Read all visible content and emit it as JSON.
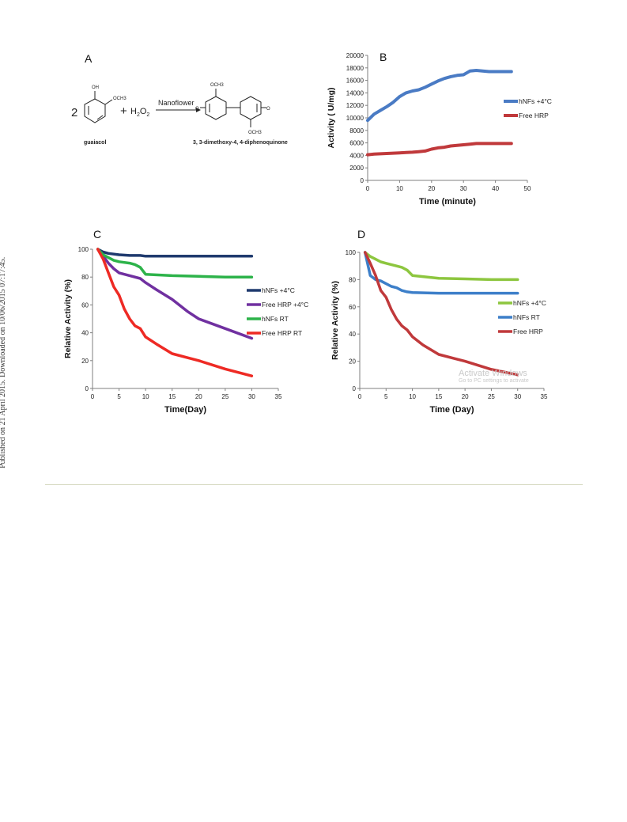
{
  "side_note": "Published on 21 April 2015. Downloaded on 10/06/2015 07:17:45.",
  "panel_a": {
    "letter": "A",
    "coefficient": "2",
    "reagent": "H2O2",
    "arrow_label": "Nanoflower",
    "reactant_name": "guaiacol",
    "product_name": "3, 3-dimethoxy-4, 4-diphenoquinone",
    "oh": "OH",
    "och3": "OCH3"
  },
  "watermark": {
    "line1": "Activate Windows",
    "line2": "Go to PC settings to activate"
  },
  "chart_data": [
    {
      "panel": "B",
      "type": "line",
      "xlabel": "Time (minute)",
      "ylabel": "Activity ( U/mg)",
      "xlim": [
        0,
        50
      ],
      "ylim": [
        0,
        20000
      ],
      "xticks": [
        0,
        10,
        20,
        30,
        40,
        50
      ],
      "yticks": [
        0,
        2000,
        4000,
        6000,
        8000,
        10000,
        12000,
        14000,
        16000,
        18000,
        20000
      ],
      "legend_position": "right",
      "series": [
        {
          "name": "hNFs +4°C",
          "color": "#4a7bc4",
          "x": [
            0,
            2,
            4,
            6,
            8,
            10,
            12,
            14,
            16,
            18,
            20,
            22,
            24,
            26,
            28,
            30,
            32,
            34,
            36,
            38,
            40,
            45
          ],
          "y": [
            9600,
            10600,
            11200,
            11800,
            12500,
            13400,
            14000,
            14300,
            14500,
            14900,
            15400,
            15900,
            16300,
            16600,
            16800,
            16900,
            17500,
            17600,
            17500,
            17400,
            17400,
            17400
          ]
        },
        {
          "name": "Free HRP",
          "color": "#c0393b",
          "x": [
            0,
            2,
            4,
            6,
            8,
            10,
            12,
            14,
            16,
            18,
            20,
            22,
            24,
            26,
            28,
            30,
            32,
            34,
            36,
            38,
            40,
            45
          ],
          "y": [
            4100,
            4200,
            4250,
            4300,
            4350,
            4400,
            4450,
            4500,
            4600,
            4700,
            5000,
            5200,
            5300,
            5500,
            5600,
            5700,
            5800,
            5900,
            5900,
            5900,
            5900,
            5900
          ]
        }
      ]
    },
    {
      "panel": "C",
      "type": "line",
      "xlabel": "Time(Day)",
      "ylabel": "Relative Activity (%)",
      "xlim": [
        0,
        35
      ],
      "ylim": [
        0,
        100
      ],
      "xticks": [
        0,
        5,
        10,
        15,
        20,
        25,
        30,
        35
      ],
      "yticks": [
        0,
        20,
        40,
        60,
        80,
        100
      ],
      "legend_position": "right",
      "series": [
        {
          "name": "hNFs +4°C",
          "color": "#1f3a6e",
          "x": [
            1,
            2,
            3,
            5,
            7,
            9,
            10,
            15,
            20,
            25,
            30
          ],
          "y": [
            100,
            98,
            97,
            96,
            95.5,
            95.5,
            95,
            95,
            95,
            95,
            95
          ]
        },
        {
          "name": "Free HRP +4°C",
          "color": "#7030a0",
          "x": [
            1,
            2,
            3,
            4,
            5,
            7,
            9,
            10,
            12,
            15,
            18,
            20,
            25,
            30
          ],
          "y": [
            100,
            95,
            90,
            86,
            83,
            81,
            79,
            76,
            71,
            64,
            55,
            50,
            43,
            36
          ]
        },
        {
          "name": "hNFs RT",
          "color": "#2db34a",
          "x": [
            1,
            2,
            3,
            4,
            5,
            7,
            8,
            9,
            10,
            15,
            20,
            25,
            30
          ],
          "y": [
            100,
            96,
            94,
            92,
            91,
            90,
            89,
            87,
            82,
            81,
            80.5,
            80,
            80
          ]
        },
        {
          "name": "Free HRP RT",
          "color": "#ee2a24",
          "x": [
            1,
            2,
            3,
            4,
            5,
            6,
            7,
            8,
            9,
            10,
            12,
            15,
            18,
            20,
            25,
            30
          ],
          "y": [
            100,
            93,
            83,
            73,
            67,
            57,
            50,
            45,
            43,
            37,
            32,
            25,
            22,
            20,
            14,
            9
          ]
        }
      ]
    },
    {
      "panel": "D",
      "type": "line",
      "xlabel": "Time (Day)",
      "ylabel": "Relative Activity (%)",
      "xlim": [
        0,
        35
      ],
      "ylim": [
        0,
        100
      ],
      "xticks": [
        0,
        5,
        10,
        15,
        20,
        25,
        30,
        35
      ],
      "yticks": [
        0,
        20,
        40,
        60,
        80,
        100
      ],
      "legend_position": "right",
      "series": [
        {
          "name": "hNFs +4°C",
          "color": "#8dc63f",
          "x": [
            1,
            2,
            3,
            4,
            5,
            7,
            8,
            9,
            10,
            15,
            20,
            25,
            30
          ],
          "y": [
            100,
            97,
            95,
            93,
            92,
            90,
            89,
            87,
            83,
            81,
            80.5,
            80,
            80
          ]
        },
        {
          "name": "hNFs RT",
          "color": "#3d7fc9",
          "x": [
            1,
            2,
            3,
            4,
            5,
            6,
            7,
            8,
            9,
            10,
            15,
            20,
            25,
            30
          ],
          "y": [
            100,
            83,
            80,
            79,
            77,
            75,
            74,
            72,
            71,
            70.5,
            70,
            70,
            70,
            70
          ]
        },
        {
          "name": "Free HRP",
          "color": "#c0393b",
          "x": [
            1,
            2,
            3,
            4,
            5,
            6,
            7,
            8,
            9,
            10,
            12,
            15,
            18,
            20,
            25,
            30
          ],
          "y": [
            100,
            92,
            83,
            72,
            67,
            58,
            51,
            46,
            43,
            38,
            32,
            25,
            22,
            20,
            14,
            10
          ]
        }
      ]
    }
  ]
}
